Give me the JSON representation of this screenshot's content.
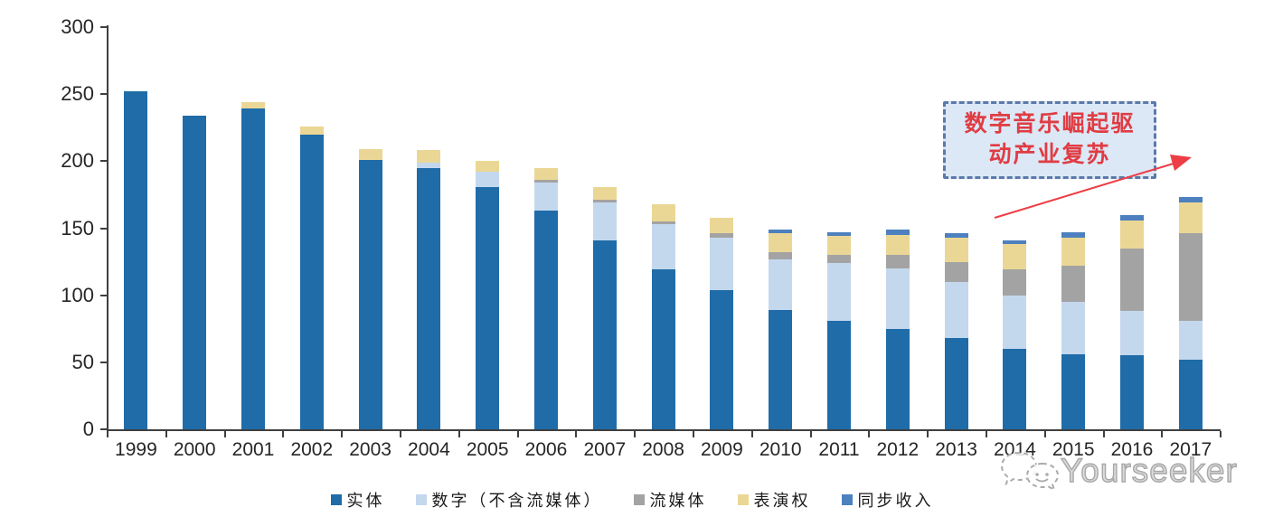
{
  "chart_data": {
    "type": "bar",
    "stacked": true,
    "title": "",
    "xlabel": "",
    "ylabel": "",
    "ylim": [
      0,
      300
    ],
    "yticks": [
      0,
      50,
      100,
      150,
      200,
      250,
      300
    ],
    "grid": false,
    "legend_position": "bottom",
    "categories": [
      "1999",
      "2000",
      "2001",
      "2002",
      "2003",
      "2004",
      "2005",
      "2006",
      "2007",
      "2008",
      "2009",
      "2010",
      "2011",
      "2012",
      "2013",
      "2014",
      "2015",
      "2016",
      "2017"
    ],
    "series": [
      {
        "name": "实体",
        "color": "#1F6CA8",
        "values": [
          252,
          234,
          239,
          220,
          201,
          195,
          181,
          163,
          141,
          119,
          104,
          89,
          81,
          75,
          68,
          60,
          56,
          55,
          52
        ]
      },
      {
        "name": "数字（不含流媒体）",
        "color": "#C4D8ED",
        "values": [
          0,
          0,
          0,
          0,
          0,
          4,
          11,
          21,
          28,
          34,
          39,
          38,
          43,
          45,
          42,
          40,
          39,
          33,
          29
        ]
      },
      {
        "name": "流媒体",
        "color": "#A3A3A3",
        "values": [
          0,
          0,
          0,
          0,
          0,
          0,
          0,
          2,
          2,
          2,
          3,
          5,
          6,
          10,
          15,
          19,
          27,
          47,
          65
        ]
      },
      {
        "name": "表演权",
        "color": "#EBD795",
        "values": [
          0,
          0,
          5,
          6,
          8,
          9,
          8,
          9,
          10,
          13,
          12,
          14,
          14,
          15,
          18,
          19,
          21,
          21,
          23
        ]
      },
      {
        "name": "同步收入",
        "color": "#4D80BE",
        "values": [
          0,
          0,
          0,
          0,
          0,
          0,
          0,
          0,
          0,
          0,
          0,
          3,
          3,
          4,
          3,
          3,
          4,
          4,
          4
        ]
      }
    ]
  },
  "annotation": {
    "line1": "数字音乐崛起驱",
    "line2": "动产业复苏",
    "text_color": "#e03c43",
    "box_fill": "#dce8f6",
    "box_border": "#5a7aa8",
    "arrow_color": "#ed3e45"
  },
  "watermark": {
    "text": "Yourseeker",
    "logo": "chat-bubbles-icon"
  }
}
